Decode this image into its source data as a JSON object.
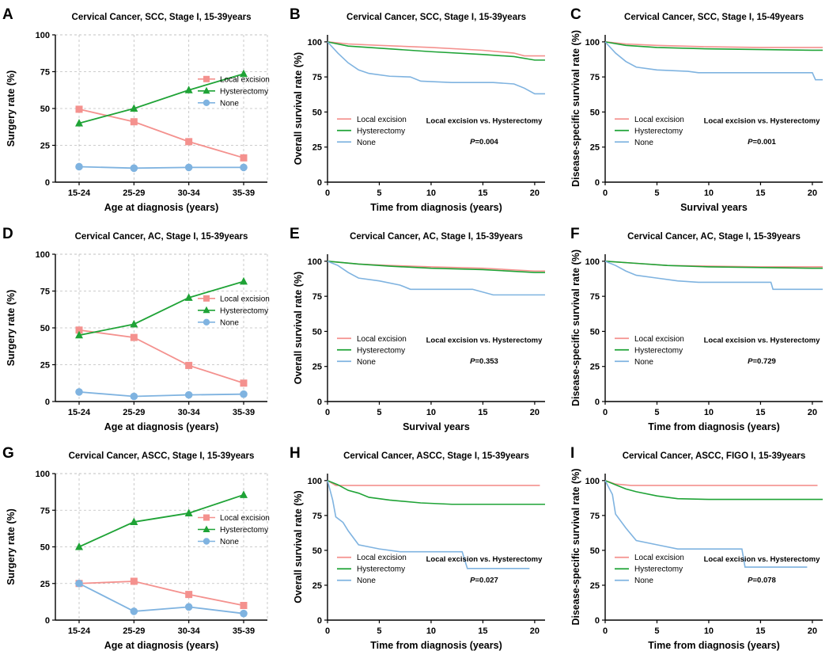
{
  "colors": {
    "local": "#F4918E",
    "hyst": "#1FA336",
    "none": "#7FB3E0",
    "grid": "#BDBDBD",
    "axis": "#000000"
  },
  "chart_data": [
    {
      "id": "A",
      "type": "line",
      "title": "Cervical Cancer, SCC, Stage I, 15-39years",
      "xlabel": "Age at diagnosis (years)",
      "ylabel": "Surgery rate (%)",
      "categories": [
        "15-24",
        "25-29",
        "30-34",
        "35-39"
      ],
      "ylim": [
        0,
        100
      ],
      "yticks": [
        0,
        25,
        50,
        75,
        100
      ],
      "grid": true,
      "legend": "right",
      "series": [
        {
          "name": "Local excision",
          "marker": "square",
          "color": "local",
          "values": [
            49.5,
            41,
            27.5,
            16.5
          ]
        },
        {
          "name": "Hysterectomy",
          "marker": "triangle",
          "color": "hyst",
          "values": [
            40,
            50,
            62.5,
            73.5
          ]
        },
        {
          "name": "None",
          "marker": "circle",
          "color": "none",
          "values": [
            10.5,
            9.5,
            10,
            10
          ]
        }
      ]
    },
    {
      "id": "B",
      "type": "line",
      "title": "Cervical Cancer, SCC, Stage I, 15-39years",
      "xlabel": "Time from diagnosis (years)",
      "ylabel": "Overall survival rate (%)",
      "xlim": [
        0,
        21
      ],
      "xticks": [
        0,
        5,
        10,
        15,
        20
      ],
      "ylim": [
        0,
        105
      ],
      "yticks": [
        0,
        25,
        50,
        75,
        100
      ],
      "comparison": "Local excision vs. Hysterectomy",
      "pvalue": "0.004",
      "series": [
        {
          "name": "Local excision",
          "color": "local",
          "points": [
            [
              0,
              100
            ],
            [
              2,
              98.5
            ],
            [
              5,
              97.5
            ],
            [
              10,
              96
            ],
            [
              15,
              94
            ],
            [
              18,
              92
            ],
            [
              19,
              90
            ],
            [
              21,
              90
            ]
          ]
        },
        {
          "name": "Hysterectomy",
          "color": "hyst",
          "points": [
            [
              0,
              100
            ],
            [
              2,
              97
            ],
            [
              5,
              95.5
            ],
            [
              10,
              93
            ],
            [
              15,
              91
            ],
            [
              18,
              89.5
            ],
            [
              20,
              87
            ],
            [
              21,
              87
            ]
          ]
        },
        {
          "name": "None",
          "color": "none",
          "points": [
            [
              0,
              100
            ],
            [
              1,
              92
            ],
            [
              2,
              85
            ],
            [
              3,
              80
            ],
            [
              4,
              77.5
            ],
            [
              6,
              75.5
            ],
            [
              8,
              75
            ],
            [
              9,
              72
            ],
            [
              12,
              71
            ],
            [
              16,
              71
            ],
            [
              18,
              70
            ],
            [
              19,
              67
            ],
            [
              20,
              63
            ],
            [
              21,
              63
            ]
          ]
        }
      ]
    },
    {
      "id": "C",
      "type": "line",
      "title": "Cervical Cancer, SCC, Stage I, 15-49years",
      "xlabel": "Survival years",
      "ylabel": "Disease-specific survival rate (%)",
      "xlim": [
        0,
        21
      ],
      "xticks": [
        0,
        5,
        10,
        15,
        20
      ],
      "ylim": [
        0,
        105
      ],
      "yticks": [
        0,
        25,
        50,
        75,
        100
      ],
      "comparison": "Local excision vs. Hysterectomy",
      "pvalue": "0.001",
      "series": [
        {
          "name": "Local excision",
          "color": "local",
          "points": [
            [
              0,
              100
            ],
            [
              2,
              98.5
            ],
            [
              5,
              97.5
            ],
            [
              10,
              96.5
            ],
            [
              15,
              96
            ],
            [
              21,
              96
            ]
          ]
        },
        {
          "name": "Hysterectomy",
          "color": "hyst",
          "points": [
            [
              0,
              100
            ],
            [
              2,
              97.5
            ],
            [
              5,
              96
            ],
            [
              10,
              95
            ],
            [
              15,
              94.5
            ],
            [
              20,
              94
            ],
            [
              21,
              94
            ]
          ]
        },
        {
          "name": "None",
          "color": "none",
          "points": [
            [
              0,
              100
            ],
            [
              1,
              92
            ],
            [
              2,
              86
            ],
            [
              3,
              82
            ],
            [
              5,
              80
            ],
            [
              8,
              79
            ],
            [
              9,
              78
            ],
            [
              20,
              78
            ],
            [
              20.3,
              73
            ],
            [
              21,
              73
            ]
          ]
        }
      ]
    },
    {
      "id": "D",
      "type": "line",
      "title": "Cervical Cancer, AC, Stage I, 15-39years",
      "xlabel": "Age at diagnosis (years)",
      "ylabel": "Surgery rate (%)",
      "categories": [
        "15-24",
        "25-29",
        "30-34",
        "35-39"
      ],
      "ylim": [
        0,
        100
      ],
      "yticks": [
        0,
        25,
        50,
        75,
        100
      ],
      "grid": true,
      "legend": "right",
      "series": [
        {
          "name": "Local excision",
          "marker": "square",
          "color": "local",
          "values": [
            48.5,
            43.5,
            24.5,
            12.5
          ]
        },
        {
          "name": "Hysterectomy",
          "marker": "triangle",
          "color": "hyst",
          "values": [
            45,
            52.5,
            70.5,
            81.5
          ]
        },
        {
          "name": "None",
          "marker": "circle",
          "color": "none",
          "values": [
            6.5,
            3.5,
            4.5,
            5
          ]
        }
      ]
    },
    {
      "id": "E",
      "type": "line",
      "title": "Cervical Cancer, AC, Stage I, 15-39years",
      "xlabel": "Survival years",
      "ylabel": "Overall survival rate (%)",
      "xlim": [
        0,
        21
      ],
      "xticks": [
        0,
        5,
        10,
        15,
        20
      ],
      "ylim": [
        0,
        105
      ],
      "yticks": [
        0,
        25,
        50,
        75,
        100
      ],
      "comparison": "Local excision vs. Hysterectomy",
      "pvalue": "0.353",
      "series": [
        {
          "name": "Local excision",
          "color": "local",
          "points": [
            [
              0,
              100
            ],
            [
              3,
              98
            ],
            [
              6,
              97
            ],
            [
              10,
              96
            ],
            [
              15,
              95
            ],
            [
              20,
              93
            ],
            [
              21,
              93
            ]
          ]
        },
        {
          "name": "Hysterectomy",
          "color": "hyst",
          "points": [
            [
              0,
              100
            ],
            [
              3,
              98
            ],
            [
              6,
              96.5
            ],
            [
              10,
              95
            ],
            [
              15,
              94
            ],
            [
              20,
              92
            ],
            [
              21,
              92
            ]
          ]
        },
        {
          "name": "None",
          "color": "none",
          "points": [
            [
              0,
              100
            ],
            [
              1,
              97
            ],
            [
              2,
              92
            ],
            [
              3,
              88
            ],
            [
              5,
              86
            ],
            [
              7,
              83
            ],
            [
              8,
              80
            ],
            [
              14,
              80
            ],
            [
              16,
              76
            ],
            [
              21,
              76
            ]
          ]
        }
      ]
    },
    {
      "id": "F",
      "type": "line",
      "title": "Cervical Cancer, AC, Stage I, 15-39years",
      "xlabel": "Time from diagnosis (years)",
      "ylabel": "Disease-specific survival rate (%)",
      "xlim": [
        0,
        21
      ],
      "xticks": [
        0,
        5,
        10,
        15,
        20
      ],
      "ylim": [
        0,
        105
      ],
      "yticks": [
        0,
        25,
        50,
        75,
        100
      ],
      "comparison": "Local excision vs. Hysterectomy",
      "pvalue": "0.729",
      "series": [
        {
          "name": "Local excision",
          "color": "local",
          "points": [
            [
              0,
              100
            ],
            [
              3,
              98.5
            ],
            [
              6,
              97
            ],
            [
              10,
              96.5
            ],
            [
              15,
              96
            ],
            [
              21,
              96
            ]
          ]
        },
        {
          "name": "Hysterectomy",
          "color": "hyst",
          "points": [
            [
              0,
              100
            ],
            [
              3,
              98.5
            ],
            [
              6,
              97
            ],
            [
              10,
              96
            ],
            [
              15,
              95.5
            ],
            [
              20,
              95
            ],
            [
              21,
              95
            ]
          ]
        },
        {
          "name": "None",
          "color": "none",
          "points": [
            [
              0,
              100
            ],
            [
              1,
              97
            ],
            [
              2,
              93
            ],
            [
              3,
              90
            ],
            [
              5,
              88
            ],
            [
              7,
              86
            ],
            [
              9,
              85
            ],
            [
              16,
              85
            ],
            [
              16.2,
              80
            ],
            [
              21,
              80
            ]
          ]
        }
      ]
    },
    {
      "id": "G",
      "type": "line",
      "title": "Cervical Cancer, ASCC, Stage I, 15-39years",
      "xlabel": "Age at diagnosis (years)",
      "ylabel": "Surgery rate (%)",
      "categories": [
        "15-24",
        "25-29",
        "30-34",
        "35-39"
      ],
      "ylim": [
        0,
        100
      ],
      "yticks": [
        0,
        25,
        50,
        75,
        100
      ],
      "grid": true,
      "legend": "right",
      "series": [
        {
          "name": "Local excision",
          "marker": "square",
          "color": "local",
          "values": [
            25,
            26.5,
            17.5,
            10
          ]
        },
        {
          "name": "Hysterectomy",
          "marker": "triangle",
          "color": "hyst",
          "values": [
            50,
            67,
            73,
            85.5
          ]
        },
        {
          "name": "None",
          "marker": "circle",
          "color": "none",
          "values": [
            25,
            6,
            9,
            4.5
          ]
        }
      ]
    },
    {
      "id": "H",
      "type": "line",
      "title": "Cervical Cancer, ASCC, Stage I, 15-39years",
      "xlabel": "Time from diagnosis (years)",
      "ylabel": "Overall survival rate (%)",
      "xlim": [
        0,
        21
      ],
      "xticks": [
        0,
        5,
        10,
        15,
        20
      ],
      "ylim": [
        0,
        105
      ],
      "yticks": [
        0,
        25,
        50,
        75,
        100
      ],
      "comparison": "Local excision vs. Hysterectomy",
      "pvalue": "0.027",
      "series": [
        {
          "name": "Local excision",
          "color": "local",
          "points": [
            [
              0,
              100
            ],
            [
              0.8,
              96.5
            ],
            [
              20.5,
              96.5
            ]
          ]
        },
        {
          "name": "Hysterectomy",
          "color": "hyst",
          "points": [
            [
              0,
              100
            ],
            [
              1,
              97
            ],
            [
              2,
              93
            ],
            [
              3,
              91
            ],
            [
              4,
              88
            ],
            [
              6,
              86
            ],
            [
              9,
              84
            ],
            [
              12,
              83
            ],
            [
              21,
              83
            ]
          ]
        },
        {
          "name": "None",
          "color": "none",
          "points": [
            [
              0,
              100
            ],
            [
              0.5,
              86
            ],
            [
              0.8,
              74
            ],
            [
              1.5,
              70
            ],
            [
              2,
              64
            ],
            [
              3,
              54
            ],
            [
              5,
              51
            ],
            [
              7,
              49
            ],
            [
              13,
              49
            ],
            [
              13.5,
              37
            ],
            [
              19.5,
              37
            ]
          ]
        }
      ]
    },
    {
      "id": "I",
      "type": "line",
      "title": "Cervical Cancer, ASCC, FIGO I, 15-39years",
      "xlabel": "Time from diagnosis (years)",
      "ylabel": "Disease-specific survival rate (%)",
      "xlim": [
        0,
        21
      ],
      "xticks": [
        0,
        5,
        10,
        15,
        20
      ],
      "ylim": [
        0,
        105
      ],
      "yticks": [
        0,
        25,
        50,
        75,
        100
      ],
      "comparison": "Local excision vs. Hysterectomy",
      "pvalue": "0.078",
      "series": [
        {
          "name": "Local excision",
          "color": "local",
          "points": [
            [
              0,
              100
            ],
            [
              1,
              97.5
            ],
            [
              2.5,
              96.5
            ],
            [
              20.5,
              96.5
            ]
          ]
        },
        {
          "name": "Hysterectomy",
          "color": "hyst",
          "points": [
            [
              0,
              100
            ],
            [
              1,
              97
            ],
            [
              2,
              94
            ],
            [
              3,
              92
            ],
            [
              5,
              89
            ],
            [
              7,
              87
            ],
            [
              10,
              86.5
            ],
            [
              21,
              86.5
            ]
          ]
        },
        {
          "name": "None",
          "color": "none",
          "points": [
            [
              0,
              100
            ],
            [
              0.7,
              90
            ],
            [
              1,
              76
            ],
            [
              2,
              66
            ],
            [
              3,
              57
            ],
            [
              5,
              54
            ],
            [
              7,
              51
            ],
            [
              13.2,
              51
            ],
            [
              13.5,
              38
            ],
            [
              19.5,
              38
            ]
          ]
        }
      ]
    }
  ]
}
